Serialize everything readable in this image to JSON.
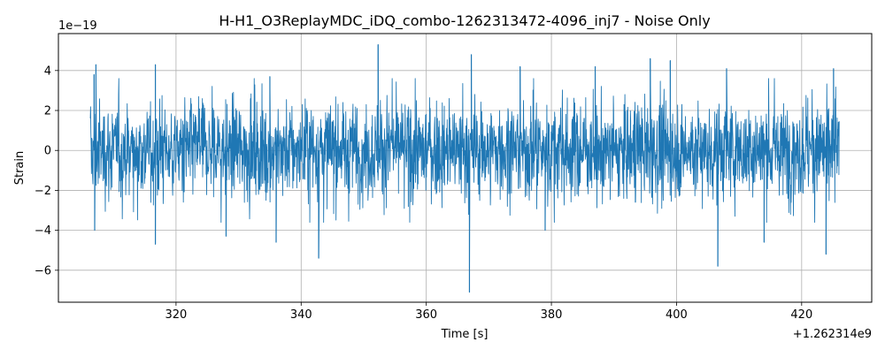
{
  "chart_data": {
    "type": "line",
    "title": "H-H1_O3ReplayMDC_iDQ_combo-1262313472-4096_inj7 - Noise Only",
    "xlabel": "Time [s]",
    "ylabel": "Strain",
    "x_offset_label": "+1.262314e9",
    "y_scale_label": "1e−19",
    "xlim": [
      301.2,
      431.2
    ],
    "ylim": [
      -7.6,
      5.85
    ],
    "x_ticks": [
      320,
      340,
      360,
      380,
      400,
      420
    ],
    "x_tick_labels": [
      "320",
      "340",
      "360",
      "380",
      "400",
      "420"
    ],
    "y_ticks": [
      -6,
      -4,
      -2,
      0,
      2,
      4
    ],
    "y_tick_labels": [
      "−6",
      "−4",
      "−2",
      "0",
      "2",
      "4"
    ],
    "grid": true,
    "series": [
      {
        "color": "#1f77b4",
        "x_range": [
          306.3,
          426.0
        ],
        "typical_envelope": [
          -2.0,
          2.0
        ],
        "peaks": [
          {
            "x": 306.9,
            "y": 3.8
          },
          {
            "x": 307.2,
            "y": 4.3
          },
          {
            "x": 307.0,
            "y": -4.0
          },
          {
            "x": 316.7,
            "y": 4.3
          },
          {
            "x": 316.7,
            "y": -4.7
          },
          {
            "x": 328.0,
            "y": -4.3
          },
          {
            "x": 335.0,
            "y": 3.7
          },
          {
            "x": 336.0,
            "y": -4.6
          },
          {
            "x": 342.8,
            "y": -5.4
          },
          {
            "x": 352.3,
            "y": 5.3
          },
          {
            "x": 366.9,
            "y": -7.1
          },
          {
            "x": 367.2,
            "y": 4.8
          },
          {
            "x": 375.0,
            "y": 4.2
          },
          {
            "x": 379.0,
            "y": -4.0
          },
          {
            "x": 387.0,
            "y": 4.2
          },
          {
            "x": 395.8,
            "y": 4.6
          },
          {
            "x": 399.0,
            "y": 4.5
          },
          {
            "x": 406.6,
            "y": -5.8
          },
          {
            "x": 408.0,
            "y": 4.1
          },
          {
            "x": 414.0,
            "y": -4.6
          },
          {
            "x": 423.9,
            "y": -5.2
          },
          {
            "x": 425.1,
            "y": 4.1
          }
        ]
      }
    ]
  }
}
